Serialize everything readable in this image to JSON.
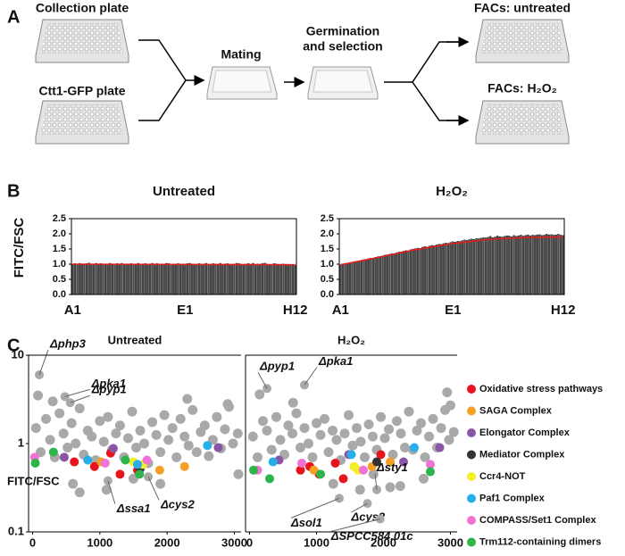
{
  "panel_labels": [
    "A",
    "B",
    "C"
  ],
  "diagram": {
    "labels": {
      "collection": "Collection plate",
      "ctt1": "Ctt1-GFP plate",
      "mating": "Mating",
      "germination": [
        "Germination",
        "and selection"
      ],
      "facs_untreated": "FACs: untreated",
      "facs_h2o2": "FACs: H₂O₂"
    }
  },
  "chart_data": [
    {
      "type": "bar",
      "title": "Untreated",
      "ylabel": "FITC/FSC",
      "color": "#4a4a4a",
      "ylim": [
        0,
        2.5
      ],
      "yticks": [
        {
          "value": 0,
          "label": "0.0"
        },
        0.5,
        {
          "value": 1,
          "label": "1.0"
        },
        1.5,
        {
          "value": 2,
          "label": "2.0"
        },
        2.5
      ],
      "categories": [
        "A1",
        null,
        null,
        null,
        null,
        null,
        null,
        null,
        null,
        null,
        null,
        null,
        null,
        null,
        null,
        null,
        null,
        null,
        null,
        null,
        null,
        null,
        null,
        null,
        null,
        null,
        null,
        null,
        null,
        null,
        null,
        null,
        null,
        null,
        null,
        null,
        null,
        null,
        null,
        null,
        null,
        null,
        null,
        null,
        null,
        null,
        null,
        null,
        "E1",
        null,
        null,
        null,
        null,
        null,
        null,
        null,
        null,
        null,
        null,
        null,
        null,
        null,
        null,
        null,
        null,
        null,
        null,
        null,
        null,
        null,
        null,
        null,
        null,
        null,
        null,
        null,
        null,
        null,
        null,
        null,
        null,
        null,
        null,
        null,
        null,
        null,
        null,
        null,
        null,
        null,
        null,
        null,
        null,
        null,
        null,
        "H12"
      ],
      "values": [
        1.0,
        1.02,
        0.99,
        1.03,
        1.01,
        0.98,
        1.02,
        1.04,
        1.0,
        0.99,
        1.03,
        1.01,
        1.02,
        1.0,
        0.98,
        1.01,
        1.03,
        1.0,
        0.99,
        1.02,
        1.01,
        1.03,
        0.98,
        1.0,
        1.01,
        1.02,
        1.0,
        0.99,
        1.03,
        1.01,
        1.0,
        1.02,
        0.98,
        1.01,
        1.03,
        1.0,
        1.02,
        0.99,
        1.01,
        1.0,
        1.03,
        1.02,
        0.98,
        1.01,
        1.0,
        1.02,
        0.99,
        1.01,
        1.0,
        1.02,
        1.03,
        1.01,
        0.99,
        1.0,
        1.02,
        0.98,
        1.01,
        1.03,
        1.0,
        0.99,
        1.02,
        1.01,
        1.0,
        1.03,
        0.99,
        1.01,
        1.02,
        1.0,
        0.98,
        1.01,
        1.03,
        1.02,
        1.0,
        0.99,
        1.01,
        1.02,
        1.0,
        1.03,
        0.98,
        1.01,
        1.0,
        1.02,
        1.04,
        1.01,
        0.99,
        1.0,
        1.02,
        1.01,
        0.98,
        1.0,
        1.01,
        0.99,
        1.0,
        0.98,
        0.99,
        0.97
      ],
      "trend": {
        "color": "#e02020",
        "x": [
          0,
          95
        ],
        "values": [
          1.0,
          0.98
        ]
      }
    },
    {
      "type": "bar",
      "title": "H₂O₂",
      "color": "#4a4a4a",
      "ylim": [
        0,
        2.5
      ],
      "yticks": [
        {
          "value": 0,
          "label": "0.0"
        },
        0.5,
        {
          "value": 1,
          "label": "1.0"
        },
        1.5,
        {
          "value": 2,
          "label": "2.0"
        },
        2.5
      ],
      "categories": [
        "A1",
        null,
        null,
        null,
        null,
        null,
        null,
        null,
        null,
        null,
        null,
        null,
        null,
        null,
        null,
        null,
        null,
        null,
        null,
        null,
        null,
        null,
        null,
        null,
        null,
        null,
        null,
        null,
        null,
        null,
        null,
        null,
        null,
        null,
        null,
        null,
        null,
        null,
        null,
        null,
        null,
        null,
        null,
        null,
        null,
        null,
        null,
        null,
        "E1",
        null,
        null,
        null,
        null,
        null,
        null,
        null,
        null,
        null,
        null,
        null,
        null,
        null,
        null,
        null,
        null,
        null,
        null,
        null,
        null,
        null,
        null,
        null,
        null,
        null,
        null,
        null,
        null,
        null,
        null,
        null,
        null,
        null,
        null,
        null,
        null,
        null,
        null,
        null,
        null,
        null,
        null,
        null,
        null,
        null,
        null,
        "H12"
      ],
      "values": [
        0.98,
        1.0,
        1.02,
        1.01,
        1.05,
        1.06,
        1.08,
        1.1,
        1.09,
        1.13,
        1.15,
        1.16,
        1.18,
        1.2,
        1.19,
        1.23,
        1.25,
        1.26,
        1.28,
        1.3,
        1.31,
        1.33,
        1.35,
        1.34,
        1.38,
        1.4,
        1.41,
        1.43,
        1.45,
        1.44,
        1.48,
        1.5,
        1.51,
        1.53,
        1.52,
        1.56,
        1.58,
        1.57,
        1.6,
        1.62,
        1.61,
        1.64,
        1.66,
        1.65,
        1.68,
        1.7,
        1.69,
        1.72,
        1.74,
        1.73,
        1.76,
        1.75,
        1.78,
        1.8,
        1.79,
        1.81,
        1.83,
        1.82,
        1.85,
        1.84,
        1.86,
        1.88,
        1.87,
        1.89,
        1.92,
        1.88,
        1.9,
        1.93,
        1.91,
        1.9,
        1.92,
        1.94,
        1.93,
        1.91,
        1.95,
        1.92,
        1.94,
        1.96,
        1.93,
        1.95,
        1.97,
        1.94,
        1.96,
        1.95,
        1.97,
        1.98,
        1.95,
        1.96,
        1.99,
        1.97,
        1.98,
        1.96,
        1.97,
        1.99,
        1.96,
        1.95
      ],
      "trend": {
        "color": "#e02020",
        "x": [
          0,
          16,
          32,
          48,
          64,
          80,
          95
        ],
        "values": [
          0.98,
          1.22,
          1.48,
          1.68,
          1.82,
          1.88,
          1.9
        ]
      }
    },
    {
      "type": "scatter",
      "title": "Untreated",
      "ylabel": "FITC/FSC",
      "log_y": true,
      "xlim": [
        -60,
        3100
      ],
      "ylim": [
        0.1,
        10
      ],
      "xticks": [
        0,
        1000,
        2000,
        3000
      ],
      "yticks": [
        0.1,
        1,
        10
      ],
      "series": [
        {
          "color": "#a9a9a9",
          "x": [
            50,
            120,
            200,
            260,
            330,
            400,
            460,
            520,
            580,
            640,
            700,
            760,
            820,
            880,
            940,
            1000,
            1060,
            1120,
            1180,
            1240,
            1300,
            1360,
            1420,
            1480,
            1540,
            1600,
            1660,
            1720,
            1780,
            1840,
            1900,
            1960,
            2020,
            2080,
            2140,
            2200,
            2260,
            2320,
            2380,
            2440,
            2500,
            2560,
            2620,
            2680,
            2740,
            2800,
            2860,
            2920,
            2980,
            3050,
            80,
            300,
            600,
            1100,
            1500,
            2900,
            3060,
            1900,
            2300,
            700
          ],
          "values": [
            1.5,
            0.8,
            1.9,
            1.1,
            0.7,
            2.2,
            1.3,
            0.9,
            1.7,
            1.0,
            2.5,
            0.75,
            1.4,
            1.2,
            0.65,
            1.8,
            1.05,
            2.0,
            0.85,
            1.3,
            1.6,
            0.7,
            1.15,
            2.3,
            0.9,
            1.4,
            1.0,
            0.6,
            1.75,
            1.25,
            0.8,
            2.1,
            1.1,
            1.5,
            0.7,
            1.9,
            1.2,
            0.95,
            2.4,
            0.8,
            1.35,
            1.6,
            0.72,
            1.1,
            2.0,
            0.88,
            1.45,
            2.6,
            1.0,
            1.3,
            3.5,
            3.0,
            0.35,
            0.3,
            0.4,
            2.8,
            0.45,
            0.35,
            3.2,
            0.28
          ]
        },
        {
          "name": "Oxidative stress pathways",
          "color": "#e8141c",
          "x": [
            620,
            920,
            1160,
            1300,
            1560
          ],
          "values": [
            0.62,
            0.55,
            0.78,
            0.45,
            0.5
          ]
        },
        {
          "name": "SAGA Complex",
          "color": "#f5a023",
          "x": [
            1020,
            1890,
            2260
          ],
          "values": [
            0.62,
            0.5,
            0.55
          ]
        },
        {
          "name": "Elongator Complex",
          "color": "#8a55a5",
          "x": [
            470,
            1200,
            2760
          ],
          "values": [
            0.7,
            0.88,
            0.9
          ]
        },
        {
          "name": "Mediator Complex",
          "color": "#333333",
          "x": [
            1600
          ],
          "values": [
            0.52
          ]
        },
        {
          "name": "Ccr4-NOT",
          "color": "#f2ee2a",
          "x": [
            1500,
            1640
          ],
          "values": [
            0.62,
            0.58
          ]
        },
        {
          "name": "Paf1 Complex",
          "color": "#27aee8",
          "x": [
            820,
            1560,
            2600
          ],
          "values": [
            0.65,
            0.58,
            0.95
          ]
        },
        {
          "name": "COMPASS/Set1 Complex",
          "color": "#f072d4",
          "x": [
            30,
            1080,
            1700
          ],
          "values": [
            0.7,
            0.6,
            0.65
          ]
        },
        {
          "name": "Trm112-containing dimers",
          "color": "#2bb54a",
          "x": [
            40,
            310,
            1380,
            1590
          ],
          "values": [
            0.6,
            0.8,
            0.65,
            0.45
          ]
        }
      ],
      "annotations": [
        {
          "text": "Δphp3",
          "x": 100,
          "y": 6
        },
        {
          "text": "Δpka1",
          "x": 480,
          "y": 3.4
        },
        {
          "text": "Δpyp1",
          "x": 560,
          "y": 2.9
        },
        {
          "text": "Δssa1",
          "x": 1120,
          "y": 0.38
        },
        {
          "text": "Δcys2",
          "x": 1720,
          "y": 0.42
        }
      ]
    },
    {
      "type": "scatter",
      "title": "H₂O₂",
      "log_y": true,
      "xlim": [
        -60,
        3100
      ],
      "ylim": [
        0.1,
        10
      ],
      "xticks": [
        0,
        1000,
        2000,
        3000
      ],
      "legend": "right",
      "series": [
        {
          "color": "#a9a9a9",
          "x": [
            50,
            120,
            200,
            260,
            330,
            400,
            460,
            520,
            580,
            640,
            700,
            760,
            820,
            880,
            940,
            1000,
            1060,
            1120,
            1180,
            1240,
            1300,
            1360,
            1420,
            1480,
            1540,
            1600,
            1660,
            1720,
            1780,
            1840,
            1900,
            1960,
            2020,
            2080,
            2140,
            2200,
            2260,
            2320,
            2380,
            2440,
            2500,
            2560,
            2620,
            2680,
            2740,
            2800,
            2860,
            2920,
            2980,
            3050,
            150,
            650,
            1250,
            1650,
            2100,
            2600,
            2950,
            3000,
            1850,
            2250
          ],
          "values": [
            1.2,
            0.7,
            1.8,
            1.4,
            0.85,
            2.0,
            1.1,
            0.75,
            1.6,
            1.3,
            2.2,
            0.9,
            1.5,
            1.0,
            0.7,
            1.7,
            1.25,
            1.9,
            0.8,
            1.4,
            1.1,
            0.65,
            1.3,
            2.1,
            0.95,
            1.5,
            1.05,
            0.7,
            1.65,
            1.2,
            0.85,
            2.0,
            1.15,
            1.45,
            0.75,
            1.8,
            1.3,
            0.9,
            2.3,
            0.85,
            1.4,
            1.7,
            0.7,
            1.2,
            1.9,
            0.9,
            1.5,
            2.4,
            1.1,
            1.35,
            3.6,
            2.9,
            0.35,
            0.3,
            0.32,
            0.4,
            3.8,
            2.7,
            0.45,
            0.33
          ]
        },
        {
          "name": "Oxidative stress pathways",
          "color": "#e8141c",
          "x": [
            760,
            900,
            1040,
            1280,
            1400,
            1960
          ],
          "values": [
            0.5,
            0.55,
            0.45,
            0.6,
            0.4,
            0.75
          ]
        },
        {
          "name": "SAGA Complex",
          "color": "#f5a023",
          "x": [
            960,
            1830,
            2100
          ],
          "values": [
            0.5,
            0.55,
            0.62
          ]
        },
        {
          "name": "Elongator Complex",
          "color": "#8a55a5",
          "x": [
            440,
            1480,
            2300,
            2840
          ],
          "values": [
            0.65,
            0.75,
            0.62,
            0.9
          ]
        },
        {
          "name": "Mediator Complex",
          "color": "#333333",
          "x": [
            1900
          ],
          "values": [
            0.62
          ]
        },
        {
          "name": "Ccr4-NOT",
          "color": "#f2ee2a",
          "x": [
            1560,
            1620
          ],
          "values": [
            0.55,
            0.5
          ]
        },
        {
          "name": "Paf1 Complex",
          "color": "#27aee8",
          "x": [
            350,
            1520,
            2460
          ],
          "values": [
            0.62,
            0.75,
            0.9
          ]
        },
        {
          "name": "COMPASS/Set1 Complex",
          "color": "#f072d4",
          "x": [
            120,
            780,
            1700,
            2700
          ],
          "values": [
            0.5,
            0.6,
            0.5,
            0.58
          ]
        },
        {
          "name": "Trm112-containing dimers",
          "color": "#2bb54a",
          "x": [
            60,
            300,
            1060,
            2700
          ],
          "values": [
            0.5,
            0.4,
            0.45,
            0.48
          ]
        }
      ],
      "annotations": [
        {
          "text": "Δpyp1",
          "x": 260,
          "y": 4.2
        },
        {
          "text": "Δpka1",
          "x": 820,
          "y": 4.6
        },
        {
          "text": "Δsty1",
          "x": 1900,
          "y": 0.3
        },
        {
          "text": "Δcys2",
          "x": 1760,
          "y": 0.21
        },
        {
          "text": "Δsol1",
          "x": 1340,
          "y": 0.24
        },
        {
          "text": "ΔSPCC584.01c",
          "x": 1950,
          "y": 0.14
        }
      ]
    }
  ]
}
